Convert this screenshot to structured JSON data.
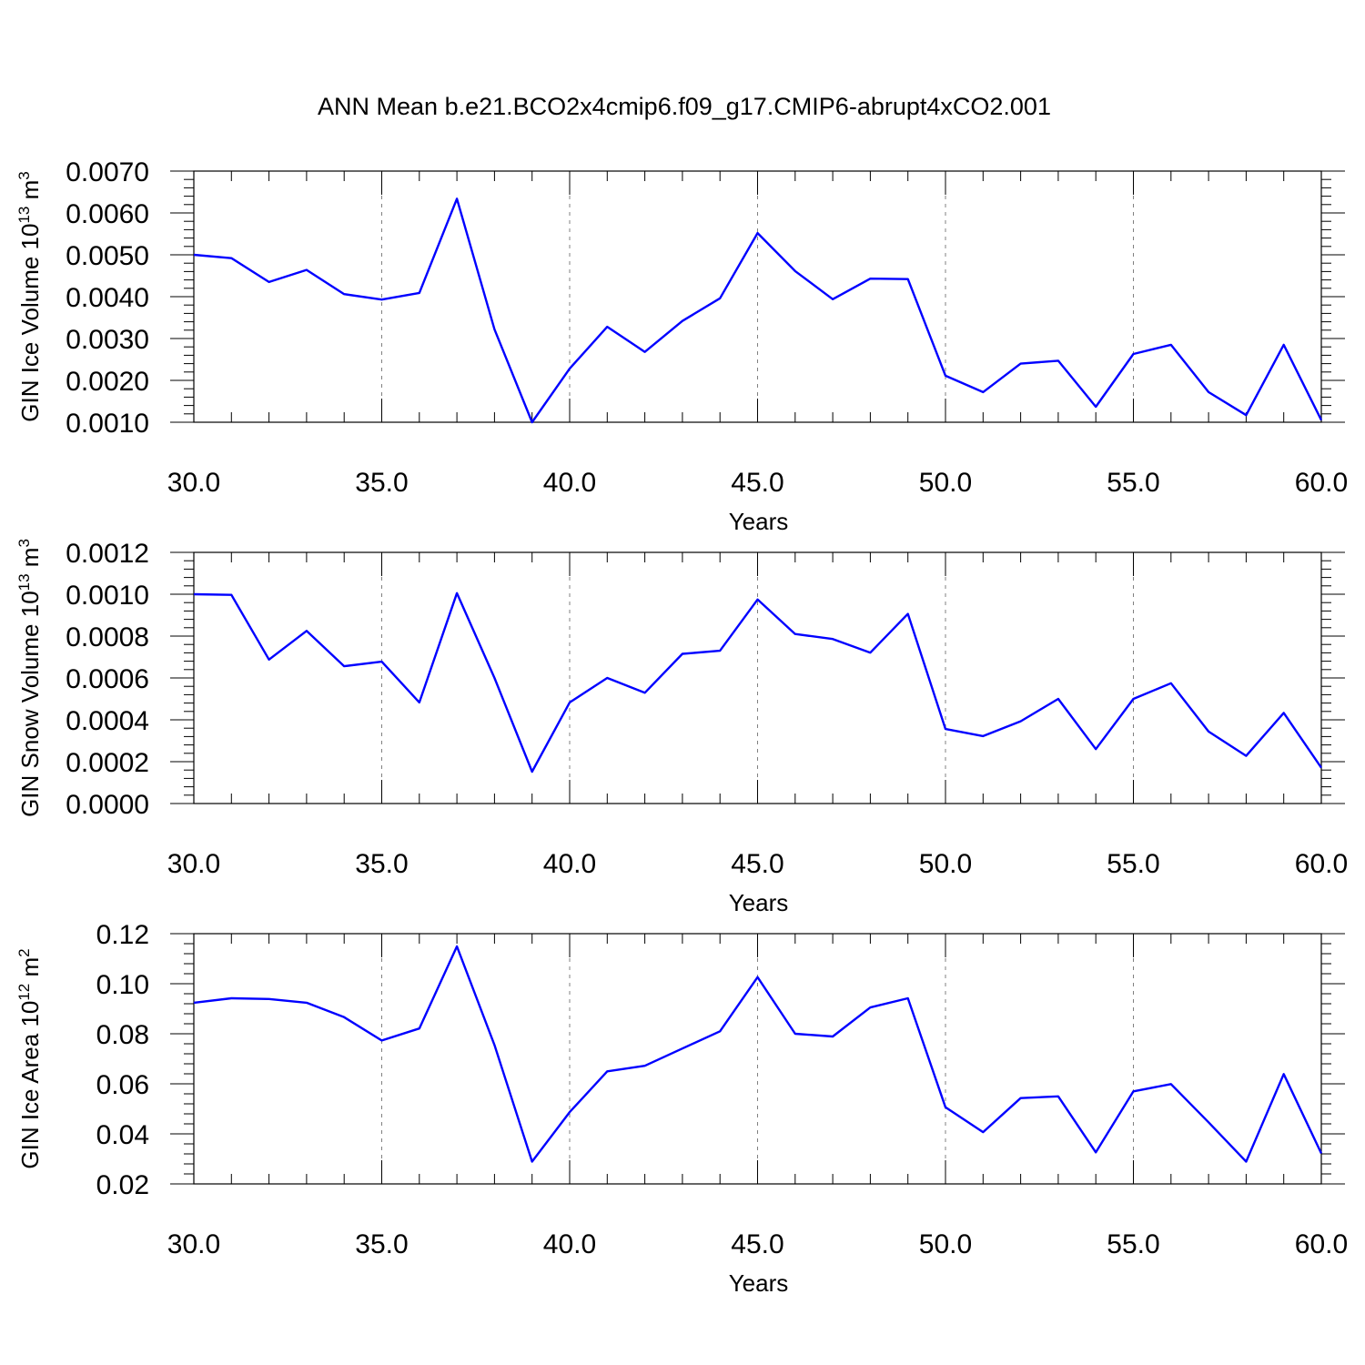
{
  "title": "ANN Mean b.e21.BCO2x4cmip6.f09_g17.CMIP6-abrupt4xCO2.001",
  "style": {
    "line_color": "#0000ff",
    "axis_color": "#000000",
    "grid_color": "#808080"
  },
  "chart_data": [
    {
      "type": "line",
      "title": "ANN Mean b.e21.BCO2x4cmip6.f09_g17.CMIP6-abrupt4xCO2.001",
      "ylabel": {
        "base": "GIN Ice Volume 10",
        "sup1": "13",
        "mid": " m",
        "sup2": "3"
      },
      "xlabel": "Years",
      "xlim": [
        30,
        60
      ],
      "ylim": [
        0.001,
        0.007
      ],
      "xticks": [
        30,
        35,
        40,
        45,
        50,
        55,
        60
      ],
      "xtick_labels": [
        "30.0",
        "35.0",
        "40.0",
        "45.0",
        "50.0",
        "55.0",
        "60.0"
      ],
      "yticks": [
        0.001,
        0.002,
        0.003,
        0.004,
        0.005,
        0.006,
        0.007
      ],
      "ytick_labels": [
        "0.0010",
        "0.0020",
        "0.0030",
        "0.0040",
        "0.0050",
        "0.0060",
        "0.0070"
      ],
      "grid": "vertical dashed at major x ticks",
      "x": [
        30,
        31,
        32,
        33,
        34,
        35,
        36,
        37,
        38,
        39,
        40,
        41,
        42,
        43,
        44,
        45,
        46,
        47,
        48,
        49,
        50,
        51,
        52,
        53,
        54,
        55,
        56,
        57,
        58,
        59,
        60
      ],
      "series": [
        {
          "values": [
            0.005,
            0.00492,
            0.00435,
            0.00464,
            0.00406,
            0.00393,
            0.00409,
            0.00634,
            0.00322,
            0.001,
            0.00228,
            0.00328,
            0.00268,
            0.00342,
            0.00396,
            0.00552,
            0.00461,
            0.00394,
            0.00443,
            0.00442,
            0.00211,
            0.00172,
            0.0024,
            0.00247,
            0.00137,
            0.00263,
            0.00285,
            0.00172,
            0.00117,
            0.00285,
            0.00105
          ]
        }
      ]
    },
    {
      "type": "line",
      "ylabel": {
        "base": "GIN Snow Volume 10",
        "sup1": "13",
        "mid": " m",
        "sup2": "3"
      },
      "xlabel": "Years",
      "xlim": [
        30,
        60
      ],
      "ylim": [
        0,
        0.0012
      ],
      "xticks": [
        30,
        35,
        40,
        45,
        50,
        55,
        60
      ],
      "xtick_labels": [
        "30.0",
        "35.0",
        "40.0",
        "45.0",
        "50.0",
        "55.0",
        "60.0"
      ],
      "yticks": [
        0,
        0.0002,
        0.0004,
        0.0006,
        0.0008,
        0.001,
        0.0012
      ],
      "ytick_labels": [
        "0.0000",
        "0.0002",
        "0.0004",
        "0.0006",
        "0.0008",
        "0.0010",
        "0.0012"
      ],
      "grid": "vertical dashed at major x ticks",
      "x": [
        30,
        31,
        32,
        33,
        34,
        35,
        36,
        37,
        38,
        39,
        40,
        41,
        42,
        43,
        44,
        45,
        46,
        47,
        48,
        49,
        50,
        51,
        52,
        53,
        54,
        55,
        56,
        57,
        58,
        59,
        60
      ],
      "series": [
        {
          "values": [
            0.001,
            0.000997,
            0.000688,
            0.000825,
            0.000656,
            0.000678,
            0.000483,
            0.001005,
            0.0006,
            0.000152,
            0.000483,
            0.0006,
            0.000529,
            0.000715,
            0.00073,
            0.000975,
            0.00081,
            0.000786,
            0.000721,
            0.000906,
            0.000356,
            0.000322,
            0.000393,
            0.0005,
            0.00026,
            0.0005,
            0.000575,
            0.000344,
            0.000228,
            0.000433,
            0.000171
          ]
        }
      ]
    },
    {
      "type": "line",
      "ylabel": {
        "base": "GIN Ice Area 10",
        "sup1": "12",
        "mid": " m",
        "sup2": "2"
      },
      "xlabel": "Years",
      "xlim": [
        30,
        60
      ],
      "ylim": [
        0.02,
        0.12
      ],
      "xticks": [
        30,
        35,
        40,
        45,
        50,
        55,
        60
      ],
      "xtick_labels": [
        "30.0",
        "35.0",
        "40.0",
        "45.0",
        "50.0",
        "55.0",
        "60.0"
      ],
      "yticks": [
        0.02,
        0.04,
        0.06,
        0.08,
        0.1,
        0.12
      ],
      "ytick_labels": [
        "0.02",
        "0.04",
        "0.06",
        "0.08",
        "0.10",
        "0.12"
      ],
      "grid": "vertical dashed at major x ticks",
      "x": [
        30,
        31,
        32,
        33,
        34,
        35,
        36,
        37,
        38,
        39,
        40,
        41,
        42,
        43,
        44,
        45,
        46,
        47,
        48,
        49,
        50,
        51,
        52,
        53,
        54,
        55,
        56,
        57,
        58,
        59,
        60
      ],
      "series": [
        {
          "values": [
            0.0924,
            0.0942,
            0.0939,
            0.0924,
            0.0866,
            0.0773,
            0.0821,
            0.1149,
            0.0755,
            0.0289,
            0.0487,
            0.065,
            0.0672,
            0.0741,
            0.081,
            0.1026,
            0.08,
            0.0789,
            0.0905,
            0.0942,
            0.0506,
            0.0407,
            0.0543,
            0.055,
            0.0326,
            0.057,
            0.0599,
            0.0446,
            0.0289,
            0.0639,
            0.0322
          ]
        }
      ]
    }
  ]
}
